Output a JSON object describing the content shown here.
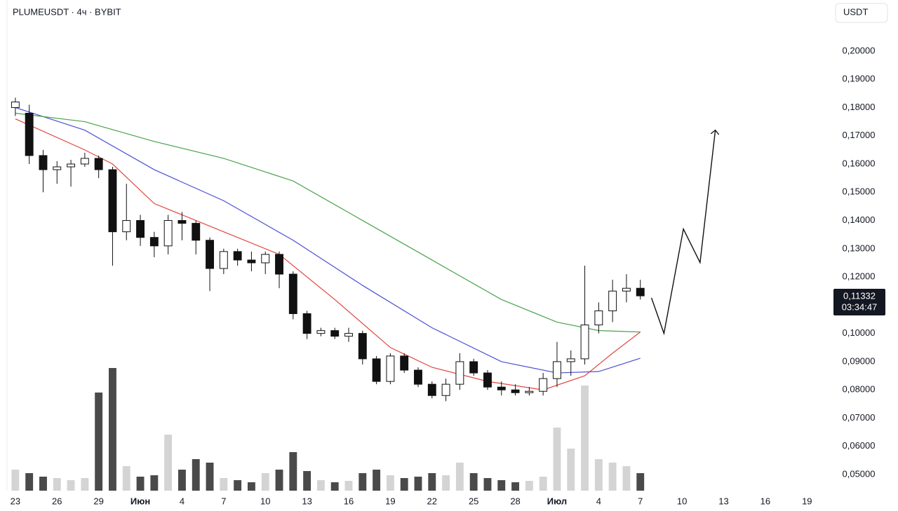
{
  "chart_data": {
    "type": "candlestick",
    "title": "PLUMEUSDT · 4ч · BYBIT",
    "currency": "USDT",
    "x": [
      0,
      1,
      2,
      3,
      4,
      5,
      6,
      7,
      8,
      9,
      10,
      11,
      12,
      13,
      14,
      15,
      16,
      17,
      18,
      19,
      20,
      21,
      22,
      23,
      24,
      25,
      26,
      27,
      28,
      29,
      30,
      31,
      32,
      33,
      34,
      35,
      36,
      37,
      38,
      39,
      40,
      41,
      42,
      43,
      44,
      45
    ],
    "open": [
      0.18,
      0.178,
      0.163,
      0.158,
      0.159,
      0.16,
      0.162,
      0.158,
      0.136,
      0.14,
      0.134,
      0.131,
      0.14,
      0.139,
      0.133,
      0.123,
      0.129,
      0.126,
      0.125,
      0.128,
      0.121,
      0.107,
      0.1,
      0.101,
      0.099,
      0.1,
      0.091,
      0.083,
      0.092,
      0.087,
      0.082,
      0.078,
      0.082,
      0.09,
      0.086,
      0.081,
      0.08,
      0.079,
      0.0795,
      0.084,
      0.09,
      0.091,
      0.103,
      0.108,
      0.115,
      0.116
    ],
    "high": [
      0.1835,
      0.181,
      0.165,
      0.161,
      0.1615,
      0.164,
      0.163,
      0.159,
      0.153,
      0.142,
      0.136,
      0.142,
      0.143,
      0.14,
      0.134,
      0.13,
      0.13,
      0.129,
      0.129,
      0.129,
      0.122,
      0.108,
      0.102,
      0.102,
      0.102,
      0.101,
      0.092,
      0.093,
      0.093,
      0.088,
      0.083,
      0.084,
      0.093,
      0.091,
      0.087,
      0.083,
      0.082,
      0.081,
      0.086,
      0.097,
      0.094,
      0.124,
      0.111,
      0.119,
      0.121,
      0.119
    ],
    "low": [
      0.177,
      0.16,
      0.15,
      0.153,
      0.152,
      0.159,
      0.155,
      0.124,
      0.133,
      0.131,
      0.127,
      0.128,
      0.133,
      0.128,
      0.115,
      0.121,
      0.124,
      0.122,
      0.121,
      0.116,
      0.105,
      0.098,
      0.099,
      0.098,
      0.097,
      0.089,
      0.082,
      0.082,
      0.086,
      0.081,
      0.077,
      0.076,
      0.08,
      0.085,
      0.08,
      0.078,
      0.078,
      0.078,
      0.078,
      0.081,
      0.085,
      0.089,
      0.1,
      0.104,
      0.111,
      0.112
    ],
    "close": [
      0.182,
      0.163,
      0.158,
      0.159,
      0.16,
      0.162,
      0.158,
      0.136,
      0.14,
      0.134,
      0.131,
      0.14,
      0.139,
      0.133,
      0.123,
      0.129,
      0.126,
      0.125,
      0.128,
      0.121,
      0.107,
      0.1,
      0.101,
      0.099,
      0.1,
      0.091,
      0.083,
      0.092,
      0.087,
      0.082,
      0.078,
      0.082,
      0.09,
      0.086,
      0.081,
      0.08,
      0.079,
      0.0795,
      0.084,
      0.09,
      0.091,
      0.103,
      0.108,
      0.115,
      0.116,
      0.1133
    ],
    "volume": [
      30,
      25,
      20,
      18,
      15,
      18,
      140,
      175,
      35,
      20,
      22,
      80,
      30,
      45,
      40,
      18,
      15,
      12,
      25,
      30,
      55,
      28,
      15,
      12,
      14,
      25,
      30,
      22,
      18,
      20,
      25,
      22,
      40,
      25,
      18,
      15,
      12,
      14,
      20,
      90,
      60,
      150,
      45,
      40,
      35,
      25
    ],
    "up_color": "#ffffff",
    "down_color": "#111111",
    "volume_up_color": "#d4d4d4",
    "volume_down_color": "#4a4a4a",
    "moving_averages": [
      {
        "color": "#e0463f",
        "x": [
          0,
          5,
          7,
          10,
          15,
          19,
          23,
          27,
          30,
          34,
          38,
          41,
          43,
          45
        ],
        "values": [
          0.176,
          0.165,
          0.16,
          0.146,
          0.136,
          0.128,
          0.112,
          0.095,
          0.088,
          0.083,
          0.08,
          0.085,
          0.093,
          0.1005
        ]
      },
      {
        "color": "#4b4fd6",
        "x": [
          0,
          5,
          10,
          15,
          20,
          25,
          30,
          35,
          39,
          42,
          45
        ],
        "values": [
          0.18,
          0.172,
          0.158,
          0.147,
          0.133,
          0.117,
          0.102,
          0.09,
          0.086,
          0.0865,
          0.0912
        ]
      },
      {
        "color": "#4aa34d",
        "x": [
          0,
          5,
          10,
          15,
          20,
          25,
          30,
          35,
          39,
          42,
          45
        ],
        "values": [
          0.178,
          0.175,
          0.168,
          0.162,
          0.154,
          0.14,
          0.126,
          0.112,
          0.104,
          0.101,
          0.1005
        ]
      }
    ],
    "projection": {
      "color": "#111111",
      "x": [
        45.8,
        46.7,
        48.1,
        49.3,
        50.4
      ],
      "values": [
        0.1126,
        0.1,
        0.137,
        0.1251,
        0.172
      ]
    },
    "last_price": {
      "value": 0.11332,
      "label": "0,11332"
    },
    "countdown": "03:34:47",
    "xlim": [
      -0.6,
      58.5
    ],
    "ylim": [
      0.0443,
      0.2181
    ],
    "xticks": [
      {
        "value": 0,
        "label": "23"
      },
      {
        "value": 3,
        "label": "26"
      },
      {
        "value": 6,
        "label": "29"
      },
      {
        "value": 9,
        "label": "Июн"
      },
      {
        "value": 12,
        "label": "4"
      },
      {
        "value": 15,
        "label": "7"
      },
      {
        "value": 18,
        "label": "10"
      },
      {
        "value": 21,
        "label": "13"
      },
      {
        "value": 24,
        "label": "16"
      },
      {
        "value": 27,
        "label": "19"
      },
      {
        "value": 30,
        "label": "22"
      },
      {
        "value": 33,
        "label": "25"
      },
      {
        "value": 36,
        "label": "28"
      },
      {
        "value": 39,
        "label": "Июл"
      },
      {
        "value": 42,
        "label": "4"
      },
      {
        "value": 45,
        "label": "7"
      },
      {
        "value": 48,
        "label": "10"
      },
      {
        "value": 51,
        "label": "13"
      },
      {
        "value": 54,
        "label": "16"
      },
      {
        "value": 57,
        "label": "19"
      }
    ],
    "yticks": [
      {
        "value": 0.05,
        "label": "0,05000"
      },
      {
        "value": 0.06,
        "label": "0,06000"
      },
      {
        "value": 0.07,
        "label": "0,07000"
      },
      {
        "value": 0.08,
        "label": "0,08000"
      },
      {
        "value": 0.09,
        "label": "0,09000"
      },
      {
        "value": 0.1,
        "label": "0,10000"
      },
      {
        "value": 0.11,
        "label": "0,11000"
      },
      {
        "value": 0.12,
        "label": "0,12000"
      },
      {
        "value": 0.13,
        "label": "0,13000"
      },
      {
        "value": 0.14,
        "label": "0,14000"
      },
      {
        "value": 0.15,
        "label": "0,15000"
      },
      {
        "value": 0.16,
        "label": "0,16000"
      },
      {
        "value": 0.17,
        "label": "0,17000"
      },
      {
        "value": 0.18,
        "label": "0,18000"
      },
      {
        "value": 0.19,
        "label": "0,19000"
      },
      {
        "value": 0.2,
        "label": "0,20000"
      }
    ]
  }
}
